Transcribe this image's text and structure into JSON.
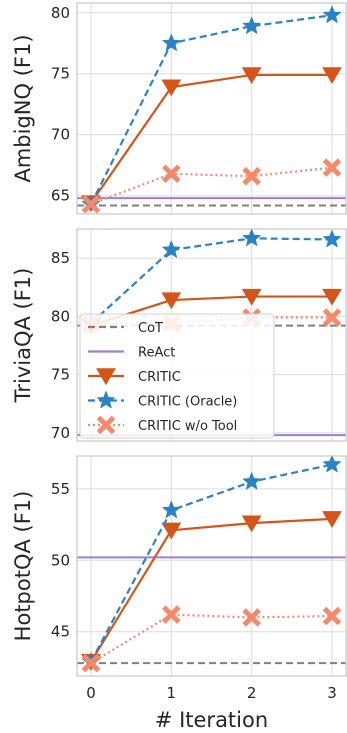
{
  "chart_data": {
    "type": "line",
    "x": [
      0,
      1,
      2,
      3
    ],
    "xticks": [
      "0",
      "1",
      "2",
      "3"
    ],
    "xlabel": "# Iteration",
    "grid": true,
    "legend": {
      "placement": "center-left of middle panel",
      "entries": [
        {
          "label": "CoT",
          "color": "#808080",
          "style": "dashed",
          "marker": "none"
        },
        {
          "label": "ReAct",
          "color": "#9b7fd4",
          "style": "solid",
          "marker": "none"
        },
        {
          "label": "CRITIC",
          "color": "#d4541a",
          "style": "solid",
          "marker": "triangle-down"
        },
        {
          "label": "CRITIC (Oracle)",
          "color": "#2b83c6",
          "style": "dashed",
          "marker": "star"
        },
        {
          "label": "CRITIC w/o Tool",
          "color": "#f4896b",
          "style": "dotted",
          "marker": "x"
        }
      ]
    },
    "panels": [
      {
        "ylabel": "AmbigNQ (F1)",
        "ylim": [
          63.5,
          80.8
        ],
        "yticks": [
          65,
          70,
          75,
          80
        ],
        "hlines": [
          {
            "name": "CoT",
            "value": 64.2
          },
          {
            "name": "ReAct",
            "value": 64.8
          }
        ],
        "series": [
          {
            "name": "CRITIC",
            "values": [
              64.4,
              73.9,
              74.9,
              74.9
            ]
          },
          {
            "name": "CRITIC (Oracle)",
            "values": [
              64.3,
              77.5,
              78.9,
              79.8
            ]
          },
          {
            "name": "CRITIC w/o Tool",
            "values": [
              64.3,
              66.8,
              66.6,
              67.3
            ]
          }
        ]
      },
      {
        "ylabel": "TriviaQA (F1)",
        "ylim": [
          69.3,
          87.5
        ],
        "yticks": [
          70,
          75,
          80,
          85
        ],
        "hlines": [
          {
            "name": "CoT",
            "value": 79.2
          },
          {
            "name": "ReAct",
            "value": 69.8
          }
        ],
        "series": [
          {
            "name": "CRITIC",
            "values": [
              79.2,
              81.4,
              81.7,
              81.7
            ]
          },
          {
            "name": "CRITIC (Oracle)",
            "values": [
              79.4,
              85.7,
              86.7,
              86.6
            ]
          },
          {
            "name": "CRITIC w/o Tool",
            "values": [
              79.4,
              79.4,
              79.9,
              79.9
            ]
          }
        ]
      },
      {
        "ylabel": "HotpotQA (F1)",
        "ylim": [
          41.9,
          57.3
        ],
        "yticks": [
          45,
          50,
          55
        ],
        "hlines": [
          {
            "name": "CoT",
            "value": 42.8
          },
          {
            "name": "ReAct",
            "value": 50.2
          }
        ],
        "series": [
          {
            "name": "CRITIC",
            "values": [
              42.9,
              52.1,
              52.6,
              52.9
            ]
          },
          {
            "name": "CRITIC (Oracle)",
            "values": [
              42.9,
              53.5,
              55.5,
              56.7
            ]
          },
          {
            "name": "CRITIC w/o Tool",
            "values": [
              42.8,
              46.2,
              46.0,
              46.1
            ]
          }
        ]
      }
    ]
  }
}
